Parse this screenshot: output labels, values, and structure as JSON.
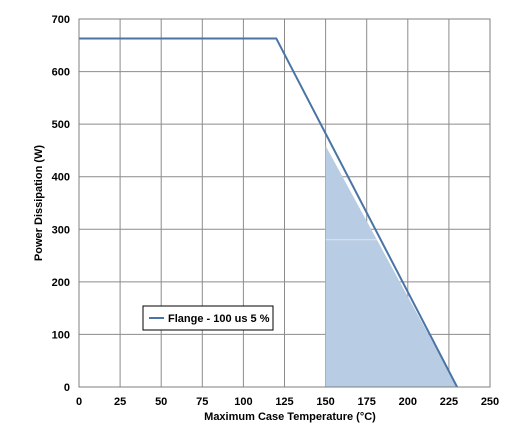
{
  "chart_data": {
    "type": "line",
    "xlabel": "Maximum Case Temperature (°C)",
    "ylabel": "Power Dissipation (W)",
    "xlim": [
      0,
      250
    ],
    "ylim": [
      0,
      700
    ],
    "x_ticks": [
      "0",
      "25",
      "50",
      "75",
      "100",
      "125",
      "150",
      "175",
      "200",
      "225",
      "250"
    ],
    "y_ticks": [
      "0",
      "100",
      "200",
      "300",
      "400",
      "500",
      "600",
      "700"
    ],
    "grid": true,
    "legend_position": "lower-left",
    "series": [
      {
        "name": "Flange - 100 us 5 %",
        "color": "#4a74a5",
        "x": [
          0,
          120,
          230
        ],
        "y": [
          663,
          663,
          0
        ]
      }
    ],
    "shaded_region": {
      "color": "#b8cce4",
      "x": [
        150,
        150,
        230
      ],
      "y": [
        0,
        459,
        0
      ]
    }
  }
}
